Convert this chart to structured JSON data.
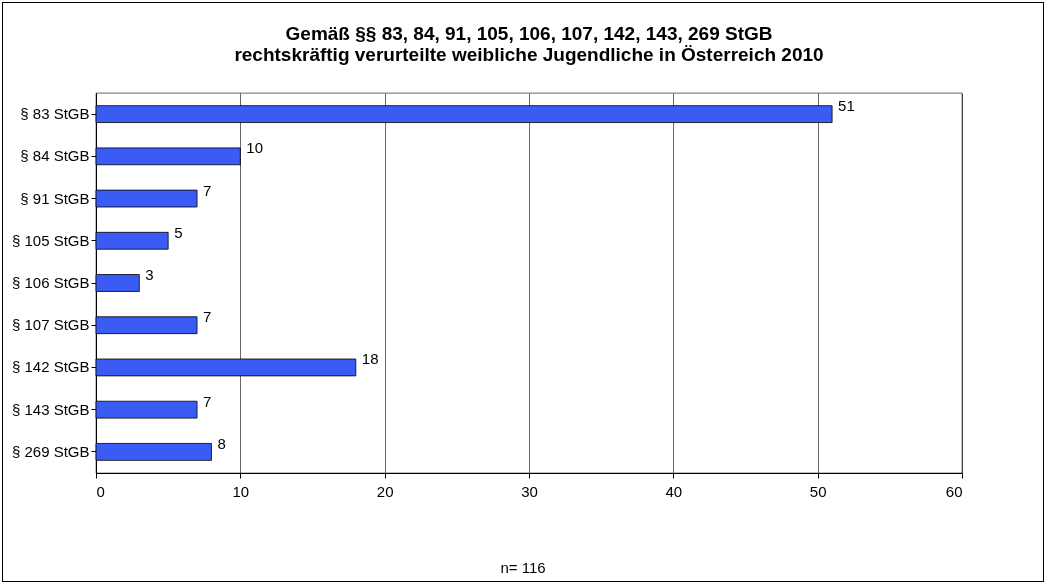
{
  "chart_data": {
    "type": "bar",
    "orientation": "horizontal",
    "title": "Gemäß §§ 83, 84, 91, 105, 106, 107, 142, 143, 269 StGB rechtskräftig verurteilte weibliche Jugendliche in Österreich 2010",
    "categories": [
      "§ 83 StGB",
      "§ 84 StGB",
      "§ 91 StGB",
      "§ 105 StGB",
      "§ 106 StGB",
      "§ 107 StGB",
      "§ 142 StGB",
      "§ 143 StGB",
      "§ 269 StGB"
    ],
    "values": [
      51,
      10,
      7,
      5,
      3,
      7,
      18,
      7,
      8
    ],
    "color": "#3a5cf5",
    "xlim": [
      0,
      60
    ],
    "xticks": [
      0,
      10,
      20,
      30,
      40,
      50,
      60
    ],
    "grid": "x",
    "data_labels": true,
    "annotations": [
      "n= 116"
    ]
  }
}
